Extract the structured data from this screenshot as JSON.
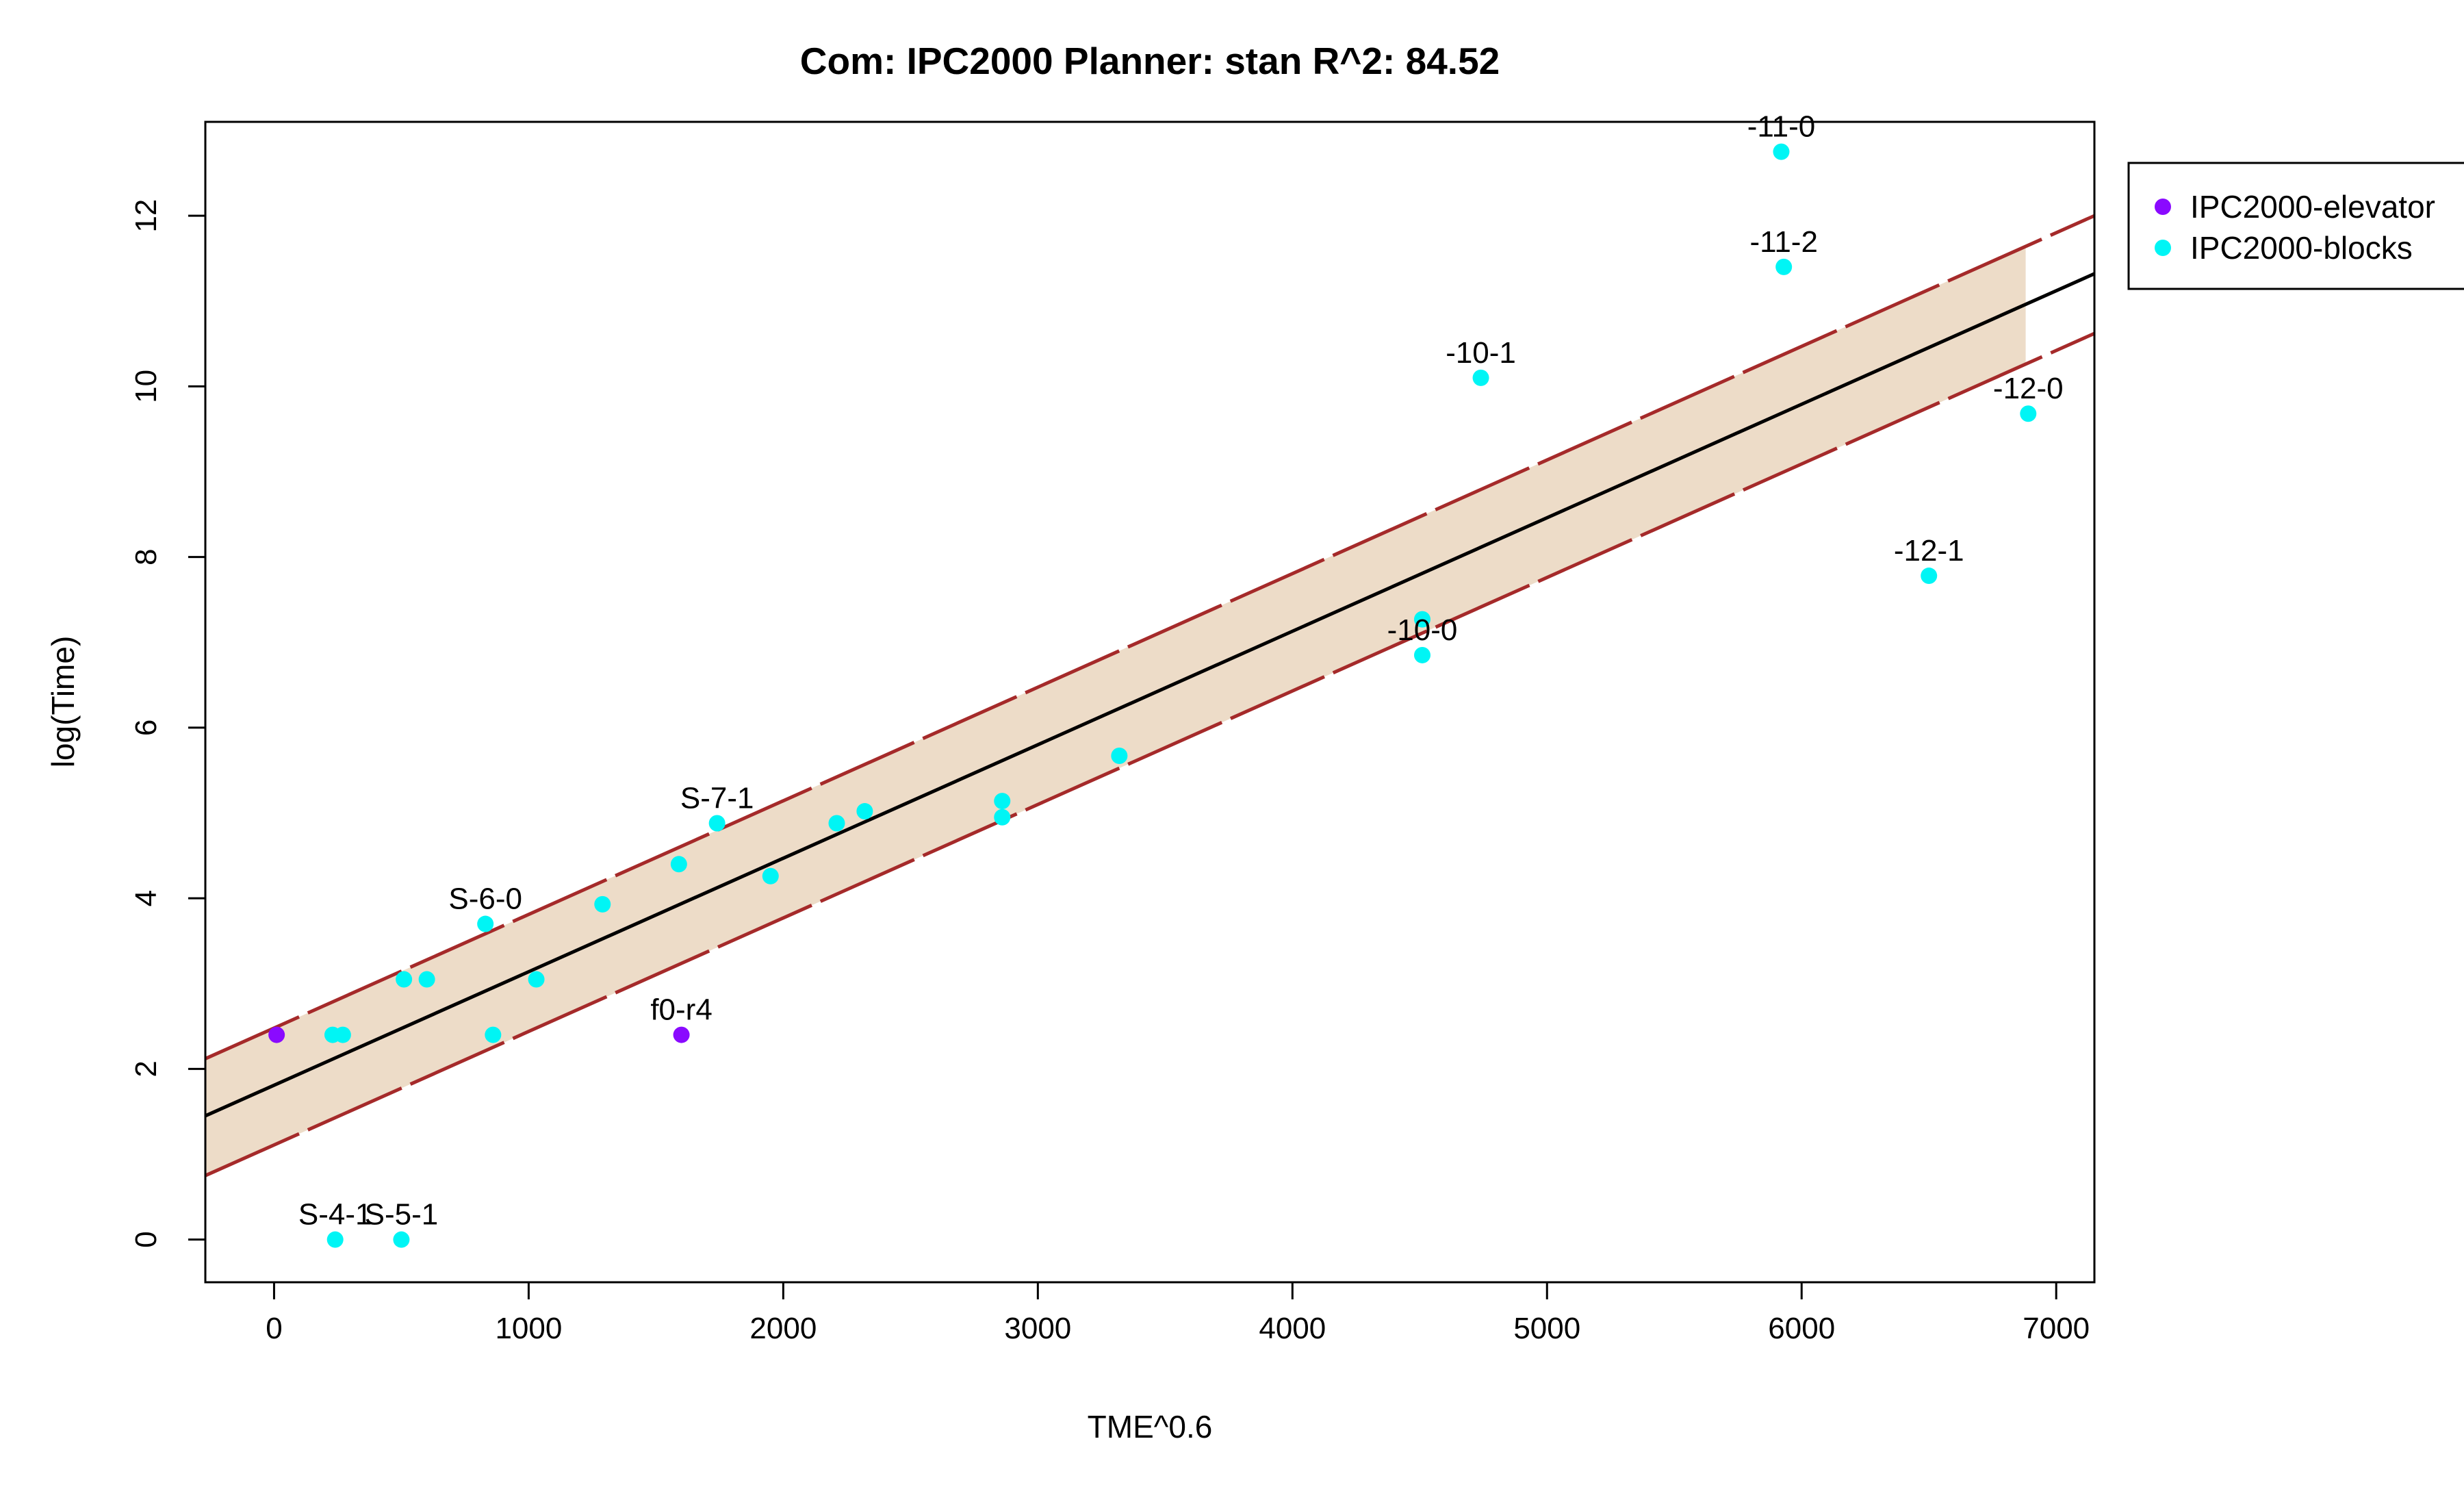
{
  "chart_data": {
    "type": "scatter",
    "title": "Com: IPC2000 Planner: stan R^2: 84.52",
    "xlabel": "TME^0.6",
    "ylabel": "log(Time)",
    "xlim": [
      -270,
      7150
    ],
    "ylim": [
      -0.5,
      13.1
    ],
    "xticks": [
      0,
      1000,
      2000,
      3000,
      4000,
      5000,
      6000,
      7000
    ],
    "yticks": [
      0,
      2,
      4,
      6,
      8,
      10,
      12
    ],
    "grid": false,
    "legend_position": "right-outside",
    "fit_line": {
      "x": [
        -270,
        7150
      ],
      "y": [
        1.45,
        11.32
      ],
      "color": "#000000"
    },
    "band_upper": {
      "x": [
        -270,
        7150
      ],
      "y": [
        2.12,
        12.0
      ],
      "color": "#a52a2a"
    },
    "band_lower": {
      "x": [
        -270,
        7150
      ],
      "y": [
        0.75,
        10.62
      ],
      "color": "#a52a2a"
    },
    "band_fill": {
      "x": [
        -270,
        6880
      ],
      "color": "#eddcc8"
    },
    "series": [
      {
        "name": "IPC2000-elevator",
        "color": "#8a0aff",
        "points": [
          {
            "x": 10,
            "y": 2.4
          },
          {
            "x": 1600,
            "y": 2.4,
            "label": "f0-r4"
          }
        ]
      },
      {
        "name": "IPC2000-blocks",
        "color": "#00f5f5",
        "points": [
          {
            "x": 240,
            "y": 0.0,
            "label": "S-4-1"
          },
          {
            "x": 500,
            "y": 0.0,
            "label": "S-5-1"
          },
          {
            "x": 230,
            "y": 2.4
          },
          {
            "x": 270,
            "y": 2.4
          },
          {
            "x": 510,
            "y": 3.05
          },
          {
            "x": 600,
            "y": 3.05
          },
          {
            "x": 830,
            "y": 3.7,
            "label": "S-6-0"
          },
          {
            "x": 860,
            "y": 2.4
          },
          {
            "x": 1030,
            "y": 3.05
          },
          {
            "x": 1290,
            "y": 3.93
          },
          {
            "x": 1590,
            "y": 4.4
          },
          {
            "x": 1740,
            "y": 4.88,
            "label": "S-7-1"
          },
          {
            "x": 1950,
            "y": 4.26
          },
          {
            "x": 2210,
            "y": 4.88
          },
          {
            "x": 2320,
            "y": 5.02
          },
          {
            "x": 2860,
            "y": 5.14
          },
          {
            "x": 2860,
            "y": 4.95
          },
          {
            "x": 3320,
            "y": 5.67
          },
          {
            "x": 4510,
            "y": 7.27
          },
          {
            "x": 4510,
            "y": 6.85,
            "label": "-10-0"
          },
          {
            "x": 4740,
            "y": 10.1,
            "label": "-10-1"
          },
          {
            "x": 5920,
            "y": 12.75,
            "label": "-11-0"
          },
          {
            "x": 5930,
            "y": 11.4,
            "label": "-11-2"
          },
          {
            "x": 6500,
            "y": 7.78,
            "label": "-12-1"
          },
          {
            "x": 6890,
            "y": 9.68,
            "label": "-12-0"
          }
        ]
      }
    ]
  }
}
